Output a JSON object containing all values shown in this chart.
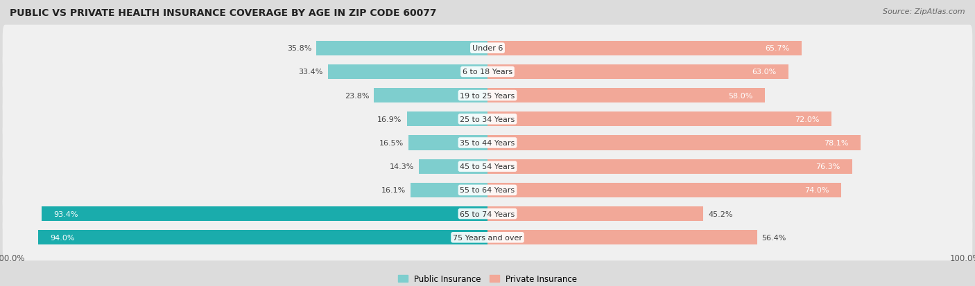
{
  "title": "PUBLIC VS PRIVATE HEALTH INSURANCE COVERAGE BY AGE IN ZIP CODE 60077",
  "source": "Source: ZipAtlas.com",
  "categories": [
    "Under 6",
    "6 to 18 Years",
    "19 to 25 Years",
    "25 to 34 Years",
    "35 to 44 Years",
    "45 to 54 Years",
    "55 to 64 Years",
    "65 to 74 Years",
    "75 Years and over"
  ],
  "public_values": [
    35.8,
    33.4,
    23.8,
    16.9,
    16.5,
    14.3,
    16.1,
    93.4,
    94.0
  ],
  "private_values": [
    65.7,
    63.0,
    58.0,
    72.0,
    78.1,
    76.3,
    74.0,
    45.2,
    56.4
  ],
  "public_color_light": "#7ecece",
  "public_color_dark": "#1aacac",
  "private_color_light": "#f2a898",
  "private_color_dark": "#e8745f",
  "public_threshold": 50.0,
  "background_color": "#dcdcdc",
  "row_bg_color": "#f0f0f0",
  "bar_height": 0.62,
  "label_fontsize": 8.0,
  "title_fontsize": 10.0,
  "legend_public": "Public Insurance",
  "legend_private": "Private Insurance"
}
